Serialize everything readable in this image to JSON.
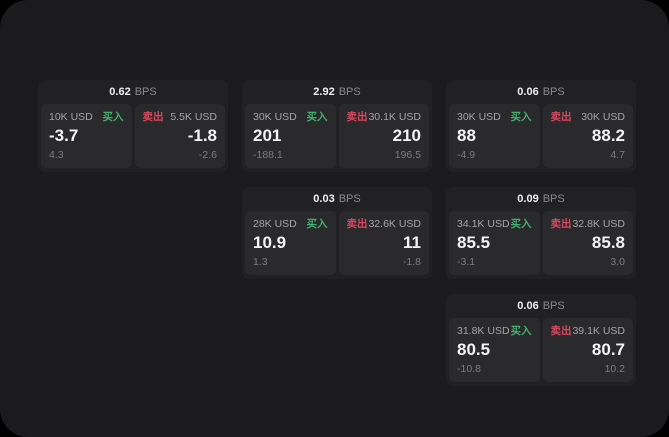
{
  "labels": {
    "bps_unit": "BPS",
    "buy": "买入",
    "sell": "卖出"
  },
  "colors": {
    "page_background": "#000000",
    "surface_background": "#1b1b1d",
    "card_background": "#212123",
    "panel_background": "#2a2a2c",
    "buy_accent": "#41b06e",
    "sell_accent": "#d7485e"
  },
  "cards": [
    {
      "bps": "0.62",
      "buy": {
        "amount": "10K USD",
        "value": "-3.7",
        "delta": "4.3"
      },
      "sell": {
        "amount": "5.5K USD",
        "value": "-1.8",
        "delta": "-2.6"
      }
    },
    {
      "bps": "2.92",
      "buy": {
        "amount": "30K USD",
        "value": "201",
        "delta": "-188.1"
      },
      "sell": {
        "amount": "30.1K USD",
        "value": "210",
        "delta": "196.5"
      }
    },
    {
      "bps": "0.06",
      "buy": {
        "amount": "30K USD",
        "value": "88",
        "delta": "-4.9"
      },
      "sell": {
        "amount": "30K USD",
        "value": "88.2",
        "delta": "4.7"
      }
    },
    {
      "bps": "0.03",
      "buy": {
        "amount": "28K USD",
        "value": "10.9",
        "delta": "1.3"
      },
      "sell": {
        "amount": "32.6K USD",
        "value": "11",
        "delta": "-1.8"
      }
    },
    {
      "bps": "0.09",
      "buy": {
        "amount": "34.1K USD",
        "value": "85.5",
        "delta": "-3.1"
      },
      "sell": {
        "amount": "32.8K USD",
        "value": "85.8",
        "delta": "3.0"
      }
    },
    {
      "bps": "0.06",
      "buy": {
        "amount": "31.8K USD",
        "value": "80.5",
        "delta": "-10.8"
      },
      "sell": {
        "amount": "39.1K USD",
        "value": "80.7",
        "delta": "10.2"
      }
    }
  ]
}
